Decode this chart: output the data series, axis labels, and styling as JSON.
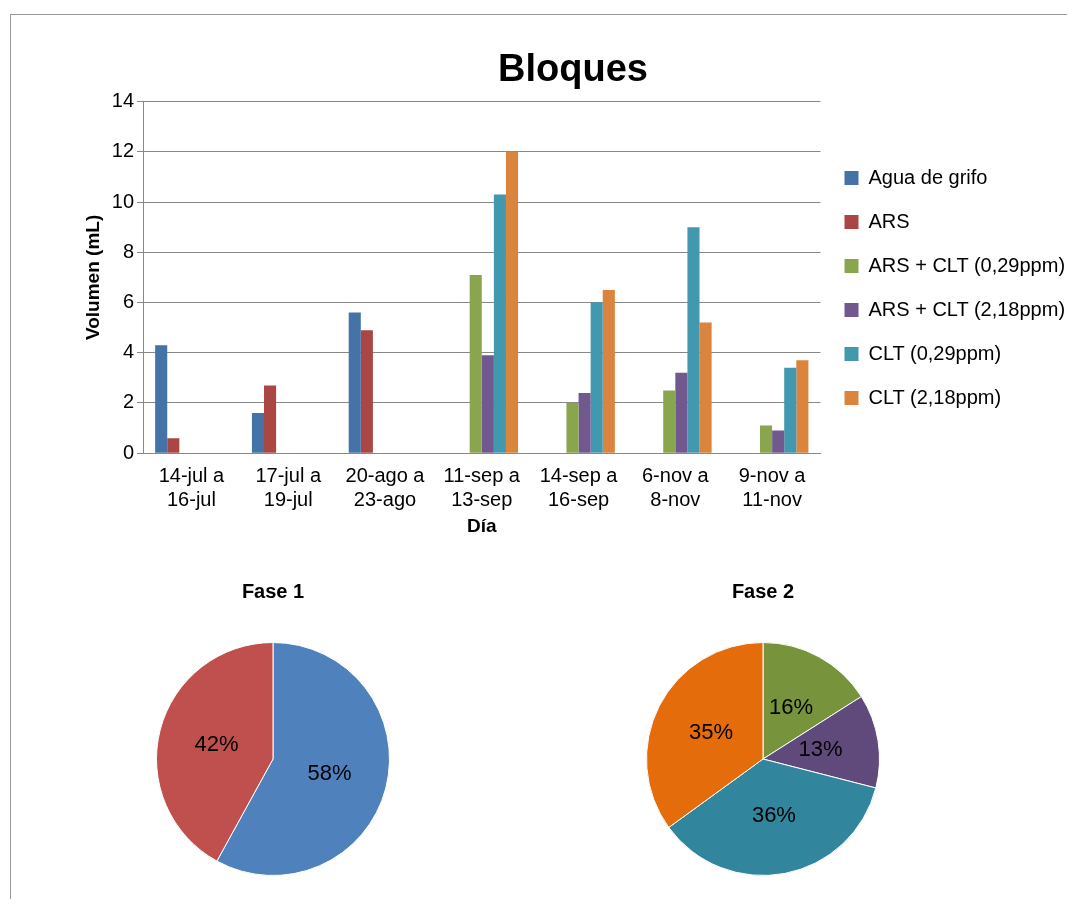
{
  "chart_data": [
    {
      "type": "bar",
      "title": "Bloques",
      "xlabel": "Día",
      "ylabel": "Volumen (mL)",
      "categories": [
        "14-jul a 16-jul",
        "17-jul a 19-jul",
        "20-ago a 23-ago",
        "11-sep a 13-sep",
        "14-sep a 16-sep",
        "6-nov a 8-nov",
        "9-nov a 11-nov"
      ],
      "series": [
        {
          "name": "Agua de grifo",
          "color": "#4572a7",
          "values": [
            4.3,
            1.6,
            5.6,
            null,
            null,
            null,
            null
          ]
        },
        {
          "name": "ARS",
          "color": "#aa4643",
          "values": [
            0.6,
            2.7,
            4.9,
            null,
            null,
            null,
            null
          ]
        },
        {
          "name": "ARS + CLT (0,29ppm)",
          "color": "#89a54e",
          "values": [
            null,
            null,
            null,
            7.1,
            2.0,
            2.5,
            1.1
          ]
        },
        {
          "name": "ARS + CLT (2,18ppm)",
          "color": "#71588f",
          "values": [
            null,
            null,
            null,
            3.9,
            2.4,
            3.2,
            0.9
          ]
        },
        {
          "name": "CLT (0,29ppm)",
          "color": "#4198af",
          "values": [
            null,
            null,
            null,
            10.3,
            6.0,
            9.0,
            3.4
          ]
        },
        {
          "name": "CLT (2,18ppm)",
          "color": "#db843d",
          "values": [
            null,
            null,
            null,
            12.0,
            6.5,
            5.2,
            3.7
          ]
        }
      ],
      "ylim": [
        0,
        14
      ],
      "yticks": [
        0,
        2,
        4,
        6,
        8,
        10,
        12,
        14
      ],
      "grid": "y",
      "legend": "right"
    },
    {
      "type": "pie",
      "title": "Fase 1",
      "categories": [
        null,
        null
      ],
      "values": [
        58,
        42
      ],
      "colors": [
        "#4f81bd",
        "#c0504d"
      ],
      "value_labels": [
        "58%",
        "42%"
      ]
    },
    {
      "type": "pie",
      "title": "Fase 2",
      "categories": [
        null,
        null,
        null,
        null
      ],
      "values": [
        16,
        13,
        36,
        35
      ],
      "colors": [
        "#77933c",
        "#604a7b",
        "#31859c",
        "#e46c0a"
      ],
      "value_labels": [
        "16%",
        "13%",
        "36%",
        "35%"
      ]
    }
  ]
}
